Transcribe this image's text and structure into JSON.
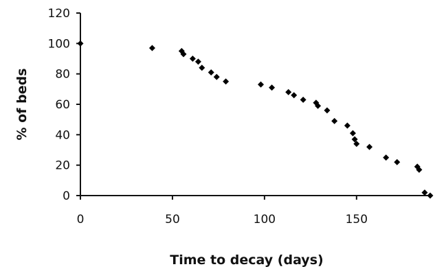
{
  "chart_data": {
    "type": "scatter",
    "title": "",
    "xlabel": "Time to decay (days)",
    "ylabel": "% of beds",
    "xlim": [
      0,
      190
    ],
    "ylim": [
      0,
      120
    ],
    "x_ticks": [
      0,
      50,
      100,
      150
    ],
    "y_ticks": [
      0,
      20,
      40,
      60,
      80,
      100,
      120
    ],
    "grid": false,
    "legend": "none",
    "marker_color": "#000000",
    "points": [
      {
        "x": 0,
        "y": 100
      },
      {
        "x": 39,
        "y": 97
      },
      {
        "x": 55,
        "y": 95
      },
      {
        "x": 56,
        "y": 93
      },
      {
        "x": 61,
        "y": 90
      },
      {
        "x": 64,
        "y": 88
      },
      {
        "x": 66,
        "y": 84
      },
      {
        "x": 71,
        "y": 81
      },
      {
        "x": 74,
        "y": 78
      },
      {
        "x": 79,
        "y": 75
      },
      {
        "x": 98,
        "y": 73
      },
      {
        "x": 104,
        "y": 71
      },
      {
        "x": 113,
        "y": 68
      },
      {
        "x": 116,
        "y": 66
      },
      {
        "x": 121,
        "y": 63
      },
      {
        "x": 128,
        "y": 61
      },
      {
        "x": 129,
        "y": 59
      },
      {
        "x": 134,
        "y": 56
      },
      {
        "x": 138,
        "y": 49
      },
      {
        "x": 145,
        "y": 46
      },
      {
        "x": 148,
        "y": 41
      },
      {
        "x": 149,
        "y": 37
      },
      {
        "x": 150,
        "y": 34
      },
      {
        "x": 157,
        "y": 32
      },
      {
        "x": 166,
        "y": 25
      },
      {
        "x": 172,
        "y": 22
      },
      {
        "x": 183,
        "y": 19
      },
      {
        "x": 184,
        "y": 17
      },
      {
        "x": 187,
        "y": 2
      },
      {
        "x": 190,
        "y": 0
      }
    ]
  }
}
